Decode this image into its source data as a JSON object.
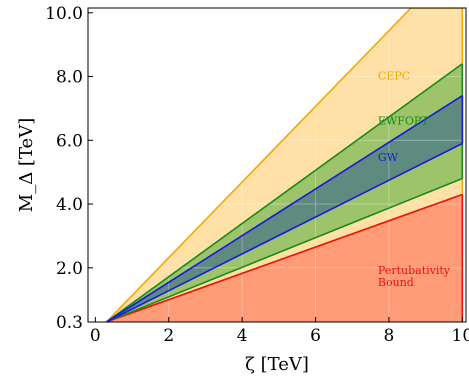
{
  "chart_data": {
    "type": "area",
    "xlabel": "ζ [TeV]",
    "ylabel": "M_Δ [TeV]",
    "xlim": [
      -0.2,
      10.1
    ],
    "ylim": [
      0.3,
      10.15
    ],
    "x_ticks": [
      0,
      2,
      4,
      6,
      8,
      10
    ],
    "x_tick_labels": [
      "0",
      "2",
      "4",
      "6",
      "8",
      "10"
    ],
    "y_ticks": [
      0.3,
      2.0,
      4.0,
      6.0,
      8.0,
      10.0
    ],
    "y_tick_labels": [
      "0.3",
      "2.0",
      "4.0",
      "6.0",
      "8.0",
      "10.0"
    ],
    "grid": true,
    "series": [
      {
        "name": "CEPC",
        "color": "#f5a800",
        "fill": "#ffe0a6",
        "lower": [
          [
            0.3,
            0.3
          ],
          [
            10.0,
            4.3
          ]
        ],
        "upper": [
          [
            0.3,
            0.3
          ],
          [
            8.6,
            10.15
          ],
          [
            10.0,
            10.15
          ]
        ]
      },
      {
        "name": "EWFOPT",
        "color": "#1a8a1a",
        "fill": "#9dc46a",
        "lower": [
          [
            0.3,
            0.3
          ],
          [
            10.0,
            4.8
          ]
        ],
        "upper": [
          [
            0.3,
            0.3
          ],
          [
            10.0,
            8.4
          ]
        ]
      },
      {
        "name": "GW",
        "color": "#1a1adc",
        "fill": "#5e8a80",
        "lower": [
          [
            0.3,
            0.3
          ],
          [
            10.0,
            5.9
          ]
        ],
        "upper": [
          [
            0.3,
            0.3
          ],
          [
            10.0,
            7.4
          ]
        ]
      },
      {
        "name": "Pertubativity Bound",
        "color": "#e8150c",
        "fill": "#ff9b77",
        "lower": [
          [
            0.3,
            0.3
          ],
          [
            10.0,
            0.3
          ]
        ],
        "upper": [
          [
            0.3,
            0.3
          ],
          [
            10.0,
            4.3
          ]
        ]
      }
    ],
    "annotations": [
      {
        "lines": [
          "CEPC"
        ],
        "x": 7.7,
        "y": 7.9,
        "color": "#f5a800"
      },
      {
        "lines": [
          "EWFOPT"
        ],
        "x": 7.7,
        "y": 6.5,
        "color": "#1a8a1a"
      },
      {
        "lines": [
          "GW"
        ],
        "x": 7.7,
        "y": 5.35,
        "color": "#1a1adc"
      },
      {
        "lines": [
          "Pertubativity",
          "Bound"
        ],
        "x": 7.7,
        "y": 1.8,
        "color": "#e8150c"
      }
    ]
  }
}
